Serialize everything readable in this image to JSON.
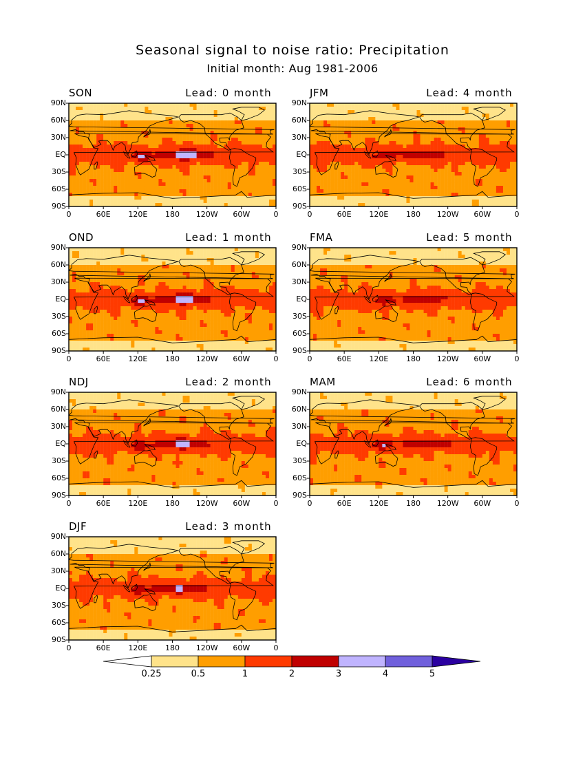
{
  "chart_data": {
    "type": "heatmap",
    "title": "Seasonal signal to noise ratio: Precipitation",
    "subtitle": "Initial month: Aug 1981-2006",
    "lat_ticks": [
      "90N",
      "60N",
      "30N",
      "EQ",
      "30S",
      "60S",
      "90S"
    ],
    "lon_ticks": [
      "0",
      "60E",
      "120E",
      "180",
      "120W",
      "60W",
      "0"
    ],
    "lat_range": [
      -90,
      90
    ],
    "lon_range": [
      0,
      360
    ],
    "panels": [
      {
        "season": "SON",
        "lead": "Lead: 0 month",
        "lead_months": 0
      },
      {
        "season": "OND",
        "lead": "Lead: 1 month",
        "lead_months": 1
      },
      {
        "season": "NDJ",
        "lead": "Lead: 2 month",
        "lead_months": 2
      },
      {
        "season": "DJF",
        "lead": "Lead: 3 month",
        "lead_months": 3
      },
      {
        "season": "JFM",
        "lead": "Lead: 4 month",
        "lead_months": 4
      },
      {
        "season": "FMA",
        "lead": "Lead: 5 month",
        "lead_months": 5
      },
      {
        "season": "MAM",
        "lead": "Lead: 6 month",
        "lead_months": 6
      }
    ],
    "colorbar": {
      "levels": [
        0.25,
        0.5,
        1,
        2,
        3,
        4,
        5
      ],
      "labels": [
        "0.25",
        "0.5",
        "1",
        "2",
        "3",
        "4",
        "5"
      ],
      "colors": [
        "#ffffff",
        "#ffe38a",
        "#ff9e00",
        "#ff3a00",
        "#c00000",
        "#c0b4ff",
        "#7060dc",
        "#2a00a0"
      ]
    }
  }
}
